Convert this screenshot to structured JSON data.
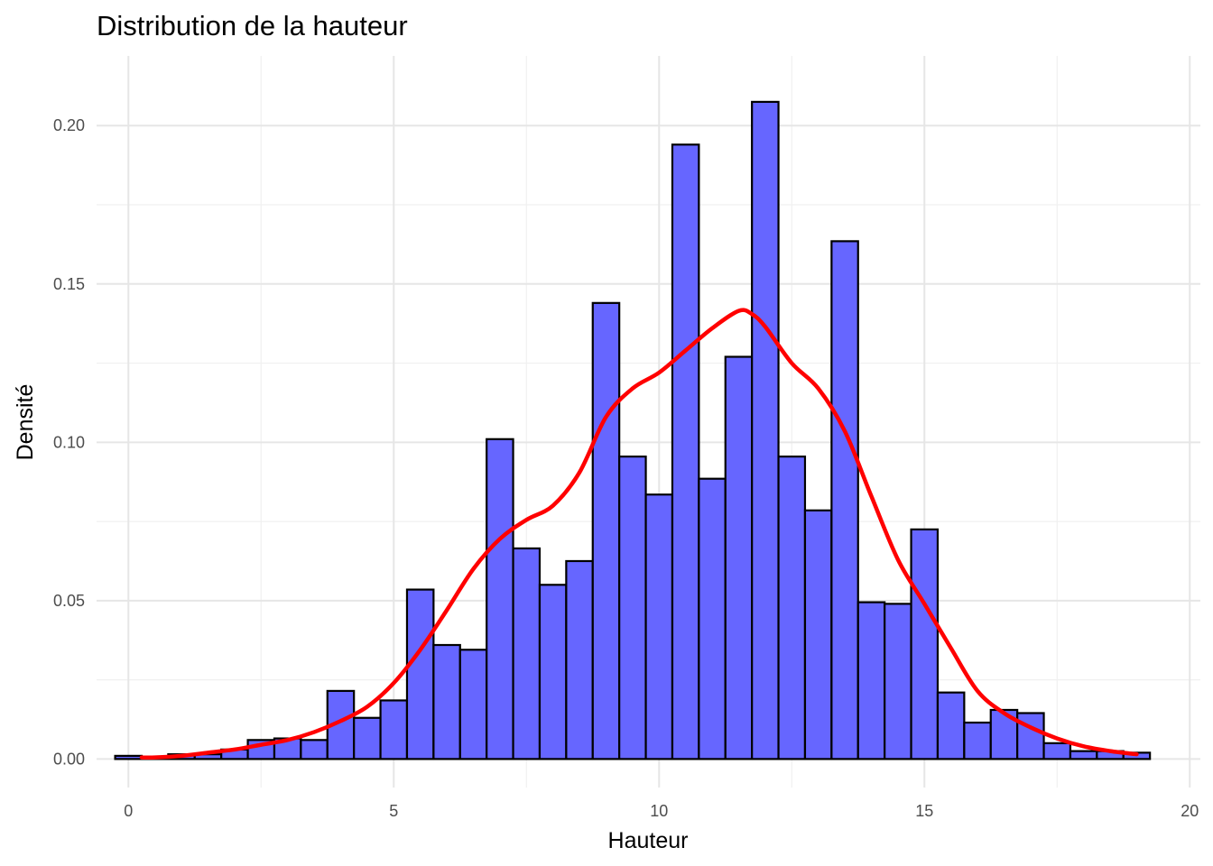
{
  "chart_data": {
    "type": "bar",
    "title": "Distribution de la hauteur",
    "xlabel": "Hauteur",
    "ylabel": "Densité",
    "xlim": [
      -0.6,
      20.2
    ],
    "ylim": [
      -0.009,
      0.222
    ],
    "x_ticks": [
      0,
      5,
      10,
      15,
      20
    ],
    "x_tick_labels": [
      "0",
      "5",
      "10",
      "15",
      "20"
    ],
    "y_ticks": [
      0.0,
      0.05,
      0.1,
      0.15,
      0.2
    ],
    "y_tick_labels": [
      "0.00",
      "0.05",
      "0.10",
      "0.15",
      "0.20"
    ],
    "grid": true,
    "legend": "none",
    "histogram": {
      "name": "",
      "bin_width": 0.5,
      "bin_starts": [
        -0.25,
        0.25,
        0.75,
        1.25,
        1.75,
        2.25,
        2.75,
        3.25,
        3.75,
        4.25,
        4.75,
        5.25,
        5.75,
        6.25,
        6.75,
        7.25,
        7.75,
        8.25,
        8.75,
        9.25,
        9.75,
        10.25,
        10.75,
        11.25,
        11.75,
        12.25,
        12.75,
        13.25,
        13.75,
        14.25,
        14.75,
        15.25,
        15.75,
        16.25,
        16.75,
        17.25,
        17.75,
        18.25,
        18.75
      ],
      "values": [
        0.001,
        0.0005,
        0.0015,
        0.0015,
        0.003,
        0.006,
        0.0065,
        0.006,
        0.0215,
        0.013,
        0.0185,
        0.0535,
        0.036,
        0.0345,
        0.101,
        0.0665,
        0.055,
        0.0625,
        0.144,
        0.0955,
        0.0835,
        0.194,
        0.0885,
        0.127,
        0.2075,
        0.0955,
        0.0785,
        0.1635,
        0.0495,
        0.049,
        0.0725,
        0.021,
        0.0115,
        0.0155,
        0.0145,
        0.005,
        0.0025,
        0.0025,
        0.002
      ],
      "fill": "#6666ff",
      "edge": "#000000"
    },
    "density": {
      "name": "",
      "color": "#ff0000",
      "x": [
        0.25,
        0.5,
        1,
        1.5,
        2,
        2.5,
        3,
        3.5,
        4,
        4.5,
        5,
        5.5,
        6,
        6.5,
        7,
        7.5,
        8,
        8.5,
        9,
        9.5,
        10,
        10.5,
        11,
        11.5,
        11.75,
        12,
        12.5,
        13,
        13.5,
        14,
        14.5,
        15,
        15.5,
        16,
        16.5,
        17,
        17.5,
        18,
        18.5,
        19
      ],
      "y": [
        0.0005,
        0.0005,
        0.001,
        0.002,
        0.003,
        0.0045,
        0.006,
        0.0085,
        0.012,
        0.0165,
        0.024,
        0.0345,
        0.047,
        0.06,
        0.0695,
        0.0755,
        0.08,
        0.0905,
        0.108,
        0.117,
        0.122,
        0.129,
        0.136,
        0.1415,
        0.1405,
        0.1365,
        0.125,
        0.117,
        0.1035,
        0.083,
        0.063,
        0.049,
        0.035,
        0.0215,
        0.0145,
        0.01,
        0.0065,
        0.004,
        0.0025,
        0.0015
      ]
    }
  }
}
